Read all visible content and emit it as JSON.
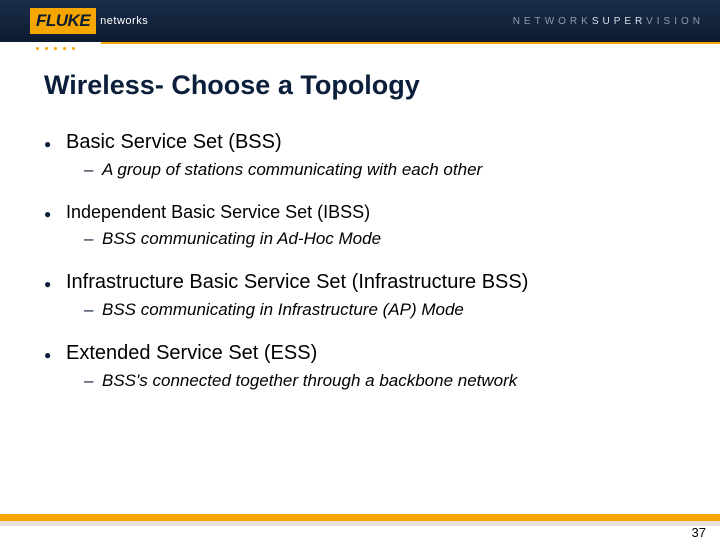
{
  "header": {
    "logo_main": "FLUKE",
    "logo_sub": "networks",
    "tagline_1": "NETWORK",
    "tagline_2": "SUPER",
    "tagline_3": "VISION"
  },
  "title": "Wireless- Choose a Topology",
  "bullets": [
    {
      "text": "Basic Service Set (BSS)",
      "size": "normal",
      "sub": [
        "A group of stations communicating with each other"
      ]
    },
    {
      "text": "Independent  Basic Service Set (IBSS)",
      "size": "small",
      "sub": [
        "BSS communicating in Ad-Hoc Mode"
      ]
    },
    {
      "text": "Infrastructure Basic Service Set (Infrastructure BSS)",
      "size": "normal",
      "sub": [
        "BSS communicating in Infrastructure (AP) Mode"
      ]
    },
    {
      "text": "Extended Service Set (ESS)",
      "size": "normal",
      "sub": [
        "BSS's connected together through a backbone network"
      ]
    }
  ],
  "page_number": "37",
  "colors": {
    "header_bg_top": "#1a2e4a",
    "header_bg_bottom": "#0d1b30",
    "accent": "#f5a600",
    "title_color": "#0b1e3a",
    "text": "#000000",
    "footer_grey": "#e6e2d9"
  }
}
